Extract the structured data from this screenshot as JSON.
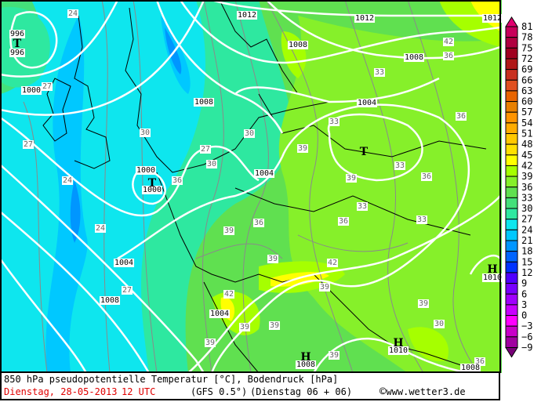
{
  "map": {
    "isobar_labels": [
      "996",
      "996",
      "1000",
      "1000",
      "1000",
      "1004",
      "1004",
      "1004",
      "1004",
      "1008",
      "1008",
      "1008",
      "1008",
      "1008",
      "1012",
      "1012",
      "1012",
      "1010",
      "1010",
      "1008"
    ],
    "pressure_centers": [
      "T",
      "T",
      "T",
      "H",
      "H",
      "H"
    ],
    "temperature_labels": [
      "24",
      "27",
      "24",
      "24",
      "27",
      "27",
      "30",
      "30",
      "30",
      "27",
      "33",
      "33",
      "36",
      "39",
      "39",
      "36",
      "33",
      "33",
      "39",
      "36",
      "39",
      "42",
      "42",
      "39",
      "36",
      "39",
      "39",
      "39",
      "42",
      "36",
      "39",
      "36",
      "33",
      "30",
      "36",
      "39"
    ],
    "colors": {
      "cold_cyan": "#0ee6ee",
      "light_blue": "#00c8ff",
      "blue": "#0096ff",
      "teal": "#2ee8a0",
      "green30": "#44e07a",
      "green33": "#60e050",
      "green36": "#86f02a",
      "yellow_green": "#a6ff00",
      "yellow": "#ffff00",
      "isobar": "#ffffff",
      "isotherm": "#8a8a8a",
      "coast": "#000000"
    }
  },
  "legend": {
    "labels": [
      "81",
      "78",
      "75",
      "72",
      "69",
      "66",
      "63",
      "60",
      "57",
      "54",
      "51",
      "48",
      "45",
      "42",
      "39",
      "36",
      "33",
      "30",
      "27",
      "24",
      "21",
      "18",
      "15",
      "12",
      "9",
      "6",
      "3",
      "0",
      "−3",
      "−6",
      "−9"
    ],
    "colors": [
      "#e0006e",
      "#c8005a",
      "#b00040",
      "#a00020",
      "#b01818",
      "#c83020",
      "#e05020",
      "#e86400",
      "#e88000",
      "#ff9400",
      "#ffac00",
      "#ffc800",
      "#ffe000",
      "#ffff00",
      "#a6ff00",
      "#86f02a",
      "#60e050",
      "#44e07a",
      "#2ee8a0",
      "#0ee6ee",
      "#00c8ff",
      "#0096ff",
      "#0064ff",
      "#0032ff",
      "#5000ff",
      "#7800ff",
      "#a000ff",
      "#c800ff",
      "#ff00ff",
      "#c800c8",
      "#a000a0",
      "#780078"
    ]
  },
  "footer": {
    "title": "850 hPa pseudopotentielle Temperatur [°C], Bodendruck [hPa]",
    "date": "Dienstag, 28-05-2013",
    "time": "12 UTC",
    "model": "(GFS 0.5°)",
    "run": "(Dienstag 06 + 06)",
    "copyright": "©",
    "site": "www.wetter3.de"
  }
}
